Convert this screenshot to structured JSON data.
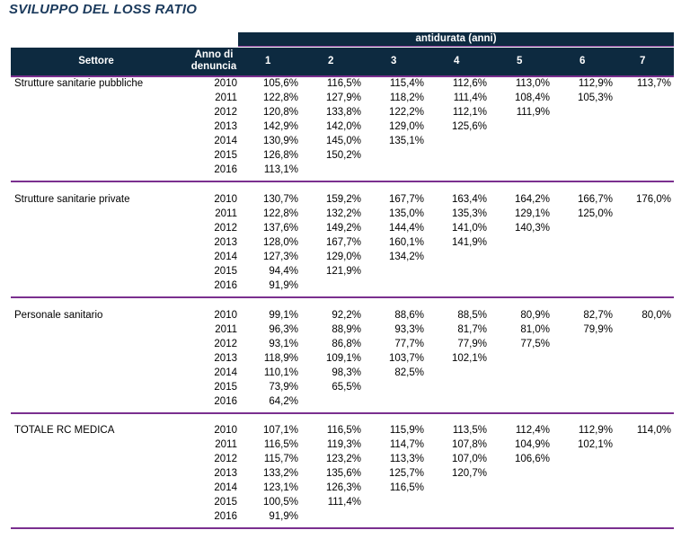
{
  "title": "SVILUPPO DEL LOSS RATIO",
  "header": {
    "group_label": "antidurata (anni)",
    "settore_label": "Settore",
    "anno_label_1": "Anno di",
    "anno_label_2": "denuncia",
    "columns": [
      "1",
      "2",
      "3",
      "4",
      "5",
      "6",
      "7"
    ]
  },
  "sections": [
    {
      "name": "Strutture sanitarie pubbliche",
      "rows": [
        {
          "year": "2010",
          "values": [
            "105,6%",
            "116,5%",
            "115,4%",
            "112,6%",
            "113,0%",
            "112,9%",
            "113,7%"
          ]
        },
        {
          "year": "2011",
          "values": [
            "122,8%",
            "127,9%",
            "118,2%",
            "111,4%",
            "108,4%",
            "105,3%"
          ]
        },
        {
          "year": "2012",
          "values": [
            "120,8%",
            "133,8%",
            "122,2%",
            "112,1%",
            "111,9%"
          ]
        },
        {
          "year": "2013",
          "values": [
            "142,9%",
            "142,0%",
            "129,0%",
            "125,6%"
          ]
        },
        {
          "year": "2014",
          "values": [
            "130,9%",
            "145,0%",
            "135,1%"
          ]
        },
        {
          "year": "2015",
          "values": [
            "126,8%",
            "150,2%"
          ]
        },
        {
          "year": "2016",
          "values": [
            "113,1%"
          ]
        }
      ]
    },
    {
      "name": "Strutture sanitarie private",
      "rows": [
        {
          "year": "2010",
          "values": [
            "130,7%",
            "159,2%",
            "167,7%",
            "163,4%",
            "164,2%",
            "166,7%",
            "176,0%"
          ]
        },
        {
          "year": "2011",
          "values": [
            "122,8%",
            "132,2%",
            "135,0%",
            "135,3%",
            "129,1%",
            "125,0%"
          ]
        },
        {
          "year": "2012",
          "values": [
            "137,6%",
            "149,2%",
            "144,4%",
            "141,0%",
            "140,3%"
          ]
        },
        {
          "year": "2013",
          "values": [
            "128,0%",
            "167,7%",
            "160,1%",
            "141,9%"
          ]
        },
        {
          "year": "2014",
          "values": [
            "127,3%",
            "129,0%",
            "134,2%"
          ]
        },
        {
          "year": "2015",
          "values": [
            "94,4%",
            "121,9%"
          ]
        },
        {
          "year": "2016",
          "values": [
            "91,9%"
          ]
        }
      ]
    },
    {
      "name": "Personale sanitario",
      "rows": [
        {
          "year": "2010",
          "values": [
            "99,1%",
            "92,2%",
            "88,6%",
            "88,5%",
            "80,9%",
            "82,7%",
            "80,0%"
          ]
        },
        {
          "year": "2011",
          "values": [
            "96,3%",
            "88,9%",
            "93,3%",
            "81,7%",
            "81,0%",
            "79,9%"
          ]
        },
        {
          "year": "2012",
          "values": [
            "93,1%",
            "86,8%",
            "77,7%",
            "77,9%",
            "77,5%"
          ]
        },
        {
          "year": "2013",
          "values": [
            "118,9%",
            "109,1%",
            "103,7%",
            "102,1%"
          ]
        },
        {
          "year": "2014",
          "values": [
            "110,1%",
            "98,3%",
            "82,5%"
          ]
        },
        {
          "year": "2015",
          "values": [
            "73,9%",
            "65,5%"
          ]
        },
        {
          "year": "2016",
          "values": [
            "64,2%"
          ]
        }
      ]
    },
    {
      "name": "TOTALE RC MEDICA",
      "rows": [
        {
          "year": "2010",
          "values": [
            "107,1%",
            "116,5%",
            "115,9%",
            "113,5%",
            "112,4%",
            "112,9%",
            "114,0%"
          ]
        },
        {
          "year": "2011",
          "values": [
            "116,5%",
            "119,3%",
            "114,7%",
            "107,8%",
            "104,9%",
            "102,1%"
          ]
        },
        {
          "year": "2012",
          "values": [
            "115,7%",
            "123,2%",
            "113,3%",
            "107,0%",
            "106,6%"
          ]
        },
        {
          "year": "2013",
          "values": [
            "133,2%",
            "135,6%",
            "125,7%",
            "120,7%"
          ]
        },
        {
          "year": "2014",
          "values": [
            "123,1%",
            "126,3%",
            "116,5%"
          ]
        },
        {
          "year": "2015",
          "values": [
            "100,5%",
            "111,4%"
          ]
        },
        {
          "year": "2016",
          "values": [
            "91,9%"
          ]
        }
      ]
    }
  ]
}
